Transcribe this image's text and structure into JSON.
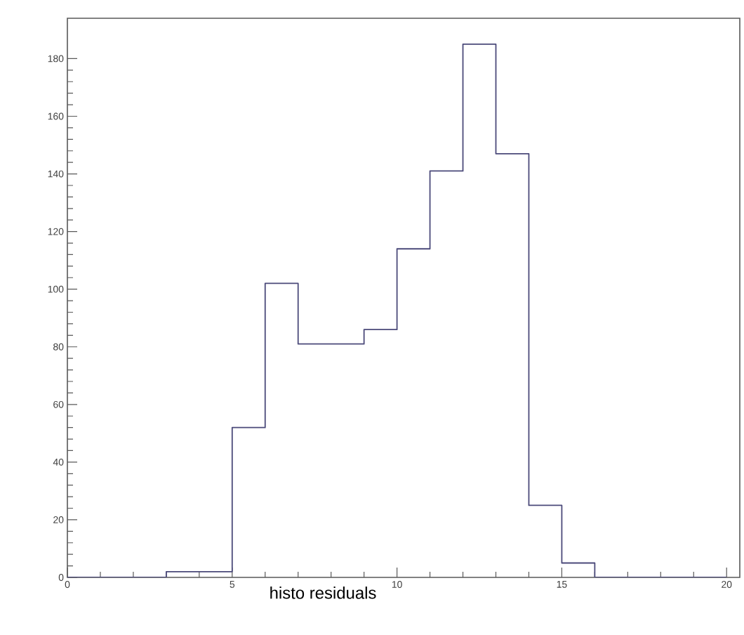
{
  "chart_data": {
    "type": "histogram",
    "xlabel": "histo residuals",
    "bins": [
      0,
      1,
      2,
      3,
      4,
      5,
      6,
      7,
      8,
      9,
      10,
      11,
      12,
      13,
      14,
      15,
      16,
      17,
      18,
      19,
      20
    ],
    "values": [
      0,
      0,
      0,
      2,
      2,
      52,
      102,
      81,
      81,
      86,
      114,
      141,
      185,
      147,
      25,
      5,
      0,
      0,
      0,
      0
    ],
    "color": "#4b4a7a",
    "xlim": [
      0,
      20.4
    ],
    "ylim": [
      0,
      194
    ],
    "xticks": [
      0,
      5,
      10,
      15,
      20
    ],
    "yticks": [
      0,
      20,
      40,
      60,
      80,
      100,
      120,
      140,
      160,
      180
    ]
  }
}
